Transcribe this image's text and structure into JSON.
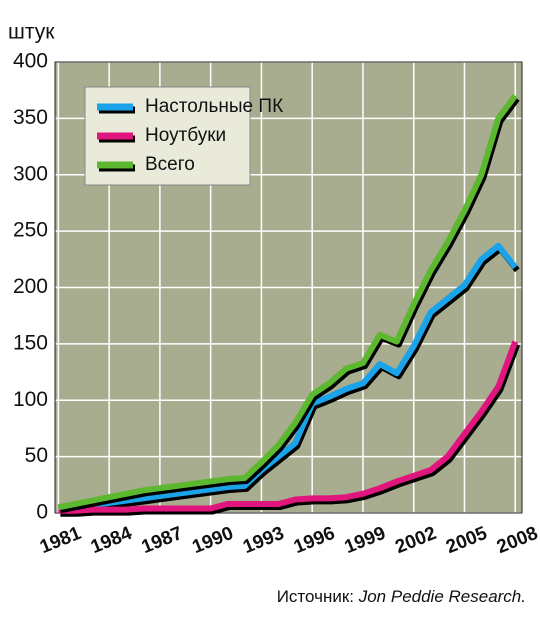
{
  "chart_data": {
    "type": "line",
    "y_unit": "штук",
    "source_label": "Источник:",
    "source_name": "Jon Peddie Research.",
    "x": [
      1981,
      1982,
      1983,
      1984,
      1985,
      1986,
      1987,
      1988,
      1989,
      1990,
      1991,
      1992,
      1993,
      1994,
      1995,
      1996,
      1997,
      1998,
      1999,
      2000,
      2001,
      2002,
      2003,
      2004,
      2005,
      2006,
      2007,
      2008
    ],
    "series": [
      {
        "name": "Настольные ПК",
        "color": "#1aa3e8",
        "values": [
          3,
          5,
          7,
          9,
          11,
          13,
          15,
          17,
          19,
          21,
          23,
          24,
          38,
          50,
          62,
          97,
          103,
          110,
          115,
          132,
          124,
          148,
          178,
          190,
          202,
          225,
          237,
          218
        ]
      },
      {
        "name": "Ноутбуки",
        "color": "#e0157e",
        "values": [
          2,
          2,
          3,
          3,
          3,
          4,
          4,
          4,
          4,
          4,
          8,
          8,
          8,
          8,
          12,
          13,
          13,
          14,
          17,
          22,
          28,
          33,
          38,
          50,
          70,
          90,
          112,
          152
        ]
      },
      {
        "name": "Всего",
        "color": "#5cb82e",
        "values": [
          5,
          8,
          11,
          14,
          17,
          20,
          22,
          24,
          26,
          28,
          30,
          31,
          45,
          60,
          80,
          105,
          115,
          128,
          133,
          158,
          152,
          185,
          215,
          240,
          268,
          300,
          350,
          370
        ]
      }
    ],
    "xlim": [
      1980.8,
      2008.4
    ],
    "xticks": [
      1981,
      1984,
      1987,
      1990,
      1993,
      1996,
      1999,
      2002,
      2005,
      2008
    ],
    "ylim": [
      0,
      400
    ],
    "yticks": [
      0,
      50,
      100,
      150,
      200,
      250,
      300,
      350,
      400
    ],
    "grid": true,
    "legend": "upper left",
    "background": "#a9ad8f"
  }
}
